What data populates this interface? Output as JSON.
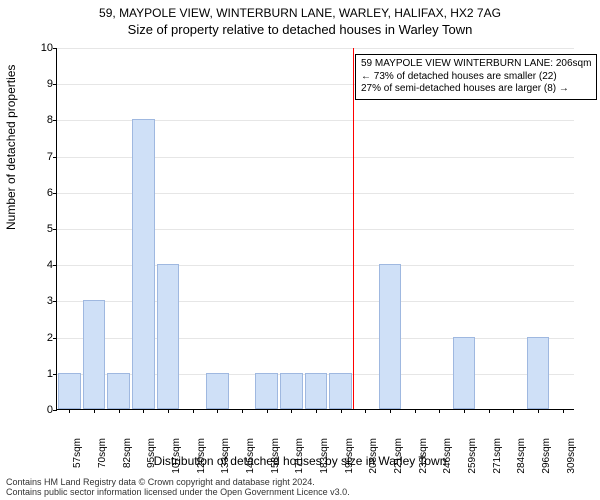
{
  "title": {
    "address": "59, MAYPOLE VIEW, WINTERBURN LANE, WARLEY, HALIFAX, HX2 7AG",
    "subtitle": "Size of property relative to detached houses in Warley Town"
  },
  "chart": {
    "type": "histogram",
    "ylabel": "Number of detached properties",
    "xlabel": "Distribution of detached houses by size in Warley Town",
    "ylim": [
      0,
      10
    ],
    "ytick_step": 1,
    "xtick_labels": [
      "57sqm",
      "70sqm",
      "82sqm",
      "95sqm",
      "107sqm",
      "120sqm",
      "133sqm",
      "145sqm",
      "158sqm",
      "171sqm",
      "183sqm",
      "196sqm",
      "208sqm",
      "221sqm",
      "233sqm",
      "246sqm",
      "259sqm",
      "271sqm",
      "284sqm",
      "296sqm",
      "309sqm"
    ],
    "bars": [
      1,
      3,
      1,
      8,
      4,
      0,
      1,
      0,
      1,
      1,
      1,
      1,
      0,
      4,
      0,
      0,
      2,
      0,
      0,
      2,
      0
    ],
    "bar_color": "#cfe0f7",
    "bar_border_color": "rgba(70,110,180,0.35)",
    "grid_color": "#e6e6e6",
    "background_color": "#ffffff",
    "reference_line": {
      "index": 12,
      "color": "#ff0000"
    },
    "annotation": {
      "line1": "59 MAYPOLE VIEW WINTERBURN LANE: 206sqm",
      "line2": "← 73% of detached houses are smaller (22)",
      "line3": "27% of semi-detached houses are larger (8) →"
    }
  },
  "footer": {
    "line1": "Contains HM Land Registry data © Crown copyright and database right 2024.",
    "line2": "Contains public sector information licensed under the Open Government Licence v3.0."
  },
  "style": {
    "font_family": "Arial, Helvetica, sans-serif",
    "title_fontsize": 12,
    "subtitle_fontsize": 13,
    "axis_label_fontsize": 12,
    "tick_fontsize": 11,
    "xtick_fontsize": 10,
    "annotation_fontsize": 10,
    "footer_fontsize": 9
  }
}
